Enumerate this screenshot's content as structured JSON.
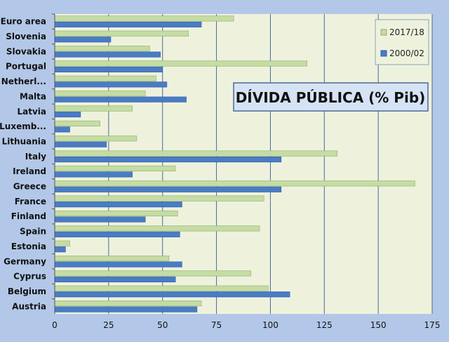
{
  "chart_data": {
    "type": "bar",
    "orientation": "horizontal",
    "title": "DÍVIDA  PÚBLICA  (% Pib)",
    "categories": [
      "Euro area",
      "Slovenia",
      "Slovakia",
      "Portugal",
      "Netherl...",
      "Malta",
      "Latvia",
      "Luxemb...",
      "Lithuania",
      "Italy",
      "Ireland",
      "Greece",
      "France",
      "Finland",
      "Spain",
      "Estonia",
      "Germany",
      "Cyprus",
      "Belgium",
      "Austria"
    ],
    "series": [
      {
        "name": "2017/18",
        "color": "#c5dca4",
        "values": [
          83,
          62,
          44,
          117,
          47,
          42,
          36,
          21,
          38,
          131,
          56,
          167,
          97,
          57,
          95,
          7,
          53,
          91,
          99,
          68
        ]
      },
      {
        "name": "2000/02",
        "color": "#4a7cc4",
        "values": [
          68,
          26,
          49,
          50,
          52,
          61,
          12,
          7,
          24,
          105,
          36,
          105,
          59,
          42,
          58,
          5,
          59,
          56,
          109,
          66
        ]
      }
    ],
    "xlim": [
      0,
      175
    ],
    "xticks": [
      0,
      25,
      50,
      75,
      100,
      125,
      150,
      175
    ],
    "grid": true,
    "legend_position": "top-right",
    "plot_background": "#eef2dd",
    "grid_color": "#4a6a9a"
  }
}
